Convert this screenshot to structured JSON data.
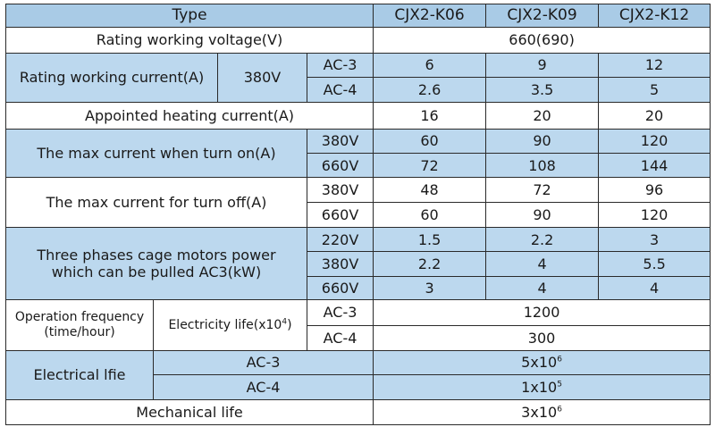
{
  "header": {
    "type": "Type",
    "models": [
      "CJX2-K06",
      "CJX2-K09",
      "CJX2-K12"
    ]
  },
  "rating_voltage": {
    "label": "Rating working voltage(V)",
    "value": "660(690)"
  },
  "rating_current": {
    "label": "Rating working current(A)",
    "voltage": "380V",
    "rows": [
      {
        "category": "AC-3",
        "values": [
          "6",
          "9",
          "12"
        ]
      },
      {
        "category": "AC-4",
        "values": [
          "2.6",
          "3.5",
          "5"
        ]
      }
    ]
  },
  "heating_current": {
    "label": "Appointed heating current(A)",
    "values": [
      "16",
      "20",
      "20"
    ]
  },
  "max_turn_on": {
    "label": "The max current when turn on(A)",
    "rows": [
      {
        "voltage": "380V",
        "values": [
          "60",
          "90",
          "120"
        ]
      },
      {
        "voltage": "660V",
        "values": [
          "72",
          "108",
          "144"
        ]
      }
    ]
  },
  "max_turn_off": {
    "label": "The max current for turn off(A)",
    "rows": [
      {
        "voltage": "380V",
        "values": [
          "48",
          "72",
          "96"
        ]
      },
      {
        "voltage": "660V",
        "values": [
          "60",
          "90",
          "120"
        ]
      }
    ]
  },
  "motor_power": {
    "label_line1": "Three phases  cage  motors power",
    "label_line2": "which can be pulled AC3(kW)",
    "rows": [
      {
        "voltage": "220V",
        "values": [
          "1.5",
          "2.2",
          "3"
        ]
      },
      {
        "voltage": "380V",
        "values": [
          "2.2",
          "4",
          "5.5"
        ]
      },
      {
        "voltage": "660V",
        "values": [
          "3",
          "4",
          "4"
        ]
      }
    ]
  },
  "operation_frequency": {
    "label_line1": "Operation frequency",
    "label_line2": "(time/hour)",
    "sub_label": "Electricity life(x10",
    "sub_label_exp": "4",
    "sub_label_end": ")",
    "rows": [
      {
        "category": "AC-3",
        "value": "1200"
      },
      {
        "category": "AC-4",
        "value": "300"
      }
    ]
  },
  "electrical_life": {
    "label": "Electrical lfie",
    "rows": [
      {
        "category": "AC-3",
        "base": "5x10",
        "exp": "6"
      },
      {
        "category": "AC-4",
        "base": "1x10",
        "exp": "5"
      }
    ]
  },
  "mechanical_life": {
    "label": "Mechanical life",
    "base": "3x10",
    "exp": "6"
  },
  "colors": {
    "light_blue": "#bcd8ee",
    "header_blue": "#a9cbe6",
    "white": "#ffffff",
    "border": "#2a2a2a"
  }
}
